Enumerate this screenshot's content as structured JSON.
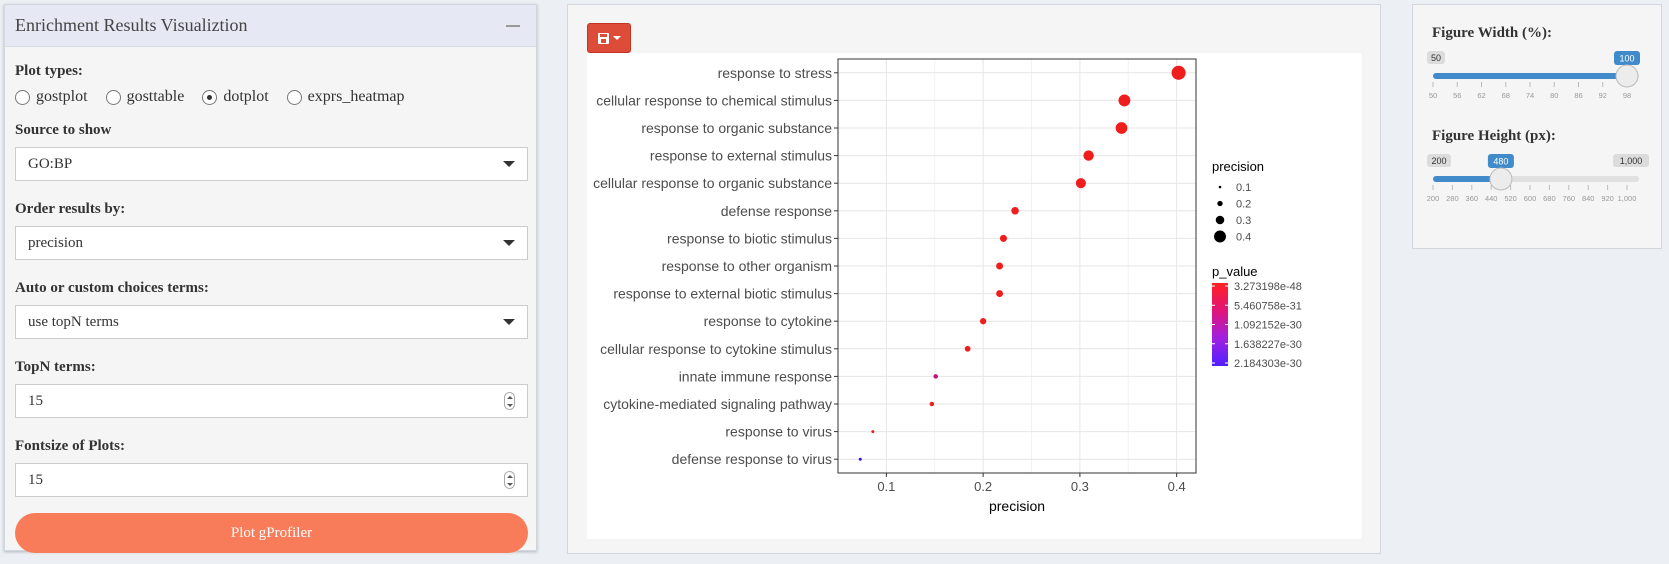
{
  "left_panel": {
    "title": "Enrichment Results Visualiztion",
    "plot_types": {
      "label": "Plot types:",
      "options": [
        "gostplot",
        "gosttable",
        "dotplot",
        "exprs_heatmap"
      ],
      "selected": "dotplot"
    },
    "source": {
      "label": "Source to show",
      "value": "GO:BP"
    },
    "order": {
      "label": "Order results by:",
      "value": "precision"
    },
    "terms_mode": {
      "label": "Auto or custom choices terms:",
      "value": "use topN terms"
    },
    "topn": {
      "label": "TopN terms:",
      "value": "15"
    },
    "fontsize": {
      "label": "Fontsize of Plots:",
      "value": "15"
    },
    "plot_button": "Plot gProfiler"
  },
  "toolbar": {
    "save_icon": "save-icon"
  },
  "chart_data": {
    "type": "scatter",
    "xlabel": "precision",
    "xlim": [
      0.05,
      0.42
    ],
    "x_ticks": [
      "0.1",
      "0.2",
      "0.3",
      "0.4"
    ],
    "grid": true,
    "categories": [
      "response to stress",
      "cellular response to chemical stimulus",
      "response to organic substance",
      "response to external stimulus",
      "cellular response to organic substance",
      "defense response",
      "response to biotic stimulus",
      "response to other organism",
      "response to external biotic stimulus",
      "response to cytokine",
      "cellular response to cytokine stimulus",
      "innate immune response",
      "cytokine-mediated signaling pathway",
      "response to virus",
      "defense response to virus"
    ],
    "points": [
      {
        "term": "response to stress",
        "precision": 0.402,
        "color": "#f01d1d"
      },
      {
        "term": "cellular response to chemical stimulus",
        "precision": 0.346,
        "color": "#f01d1d"
      },
      {
        "term": "response to organic substance",
        "precision": 0.343,
        "color": "#f01d1d"
      },
      {
        "term": "response to external stimulus",
        "precision": 0.309,
        "color": "#f01d1d"
      },
      {
        "term": "cellular response to organic substance",
        "precision": 0.301,
        "color": "#f01d1d"
      },
      {
        "term": "defense response",
        "precision": 0.233,
        "color": "#f01d1d"
      },
      {
        "term": "response to biotic stimulus",
        "precision": 0.221,
        "color": "#f01d1d"
      },
      {
        "term": "response to other organism",
        "precision": 0.217,
        "color": "#f01d1d"
      },
      {
        "term": "response to external biotic stimulus",
        "precision": 0.217,
        "color": "#f01d1d"
      },
      {
        "term": "response to cytokine",
        "precision": 0.2,
        "color": "#f01d1d"
      },
      {
        "term": "cellular response to cytokine stimulus",
        "precision": 0.184,
        "color": "#f01d1d"
      },
      {
        "term": "innate immune response",
        "precision": 0.151,
        "color": "#c0187a"
      },
      {
        "term": "cytokine-mediated signaling pathway",
        "precision": 0.147,
        "color": "#f01d1d"
      },
      {
        "term": "response to virus",
        "precision": 0.086,
        "color": "#f01d1d"
      },
      {
        "term": "defense response to virus",
        "precision": 0.073,
        "color": "#2b12ff"
      }
    ],
    "legend_size": {
      "title": "precision",
      "entries": [
        {
          "label": "0.1",
          "value": 0.1
        },
        {
          "label": "0.2",
          "value": 0.2
        },
        {
          "label": "0.3",
          "value": 0.3
        },
        {
          "label": "0.4",
          "value": 0.4
        }
      ]
    },
    "legend_color": {
      "title": "p_value",
      "labels": [
        "3.273198e-48",
        "5.460758e-31",
        "1.092152e-30",
        "1.638227e-30",
        "2.184303e-30"
      ],
      "gradient": [
        "#ff2020",
        "#e0157a",
        "#a020e0",
        "#5020ff"
      ]
    },
    "legend_placement": "right"
  },
  "right_panel": {
    "width_slider": {
      "label": "Figure Width (%):",
      "min": "50",
      "max": "100",
      "value": "100",
      "ticks": [
        "50",
        "56",
        "62",
        "68",
        "74",
        "80",
        "86",
        "92",
        "98"
      ]
    },
    "height_slider": {
      "label": "Figure Height (px):",
      "min": "200",
      "max": "1,000",
      "value": "480",
      "ticks": [
        "200",
        "280",
        "360",
        "440",
        "520",
        "600",
        "680",
        "760",
        "840",
        "920",
        "1,000"
      ]
    },
    "accent_color": "#428bca"
  }
}
